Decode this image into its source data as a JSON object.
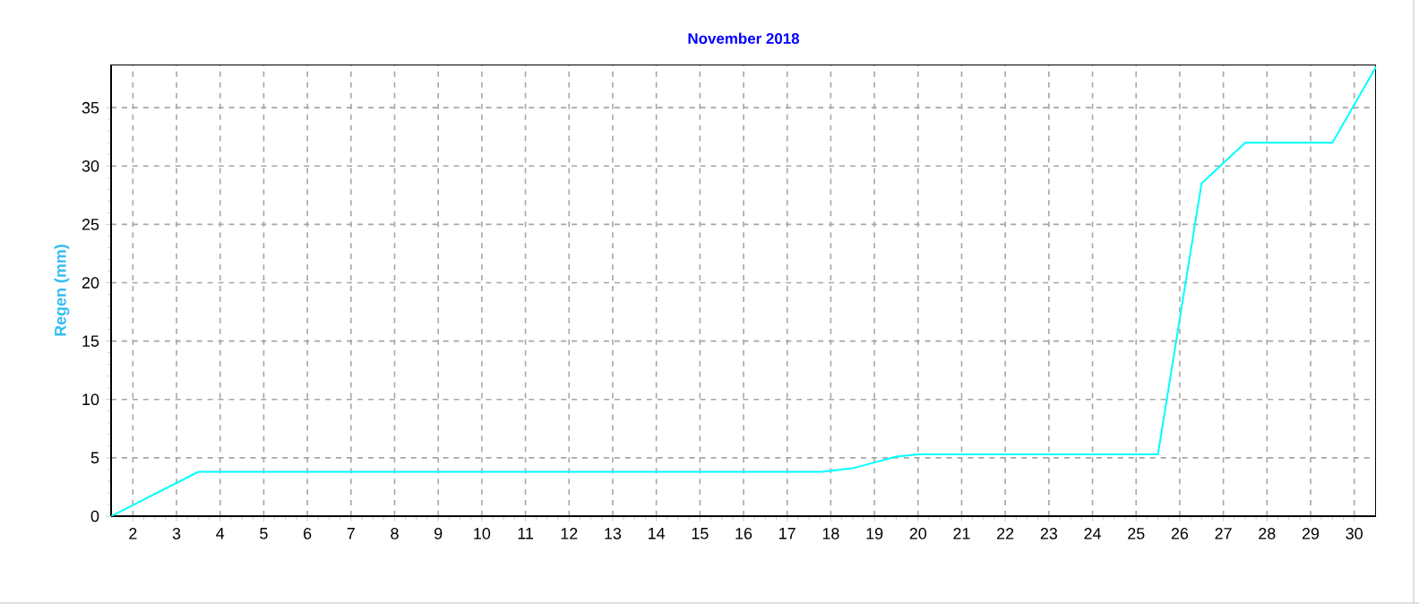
{
  "chart_data": {
    "type": "line",
    "title": "November 2018",
    "ylabel": "Regen  (mm)",
    "color": "#00ffff",
    "x": [
      1.5,
      3.5,
      17.8,
      18.5,
      19.5,
      20,
      25.5,
      26.5,
      27.5,
      29.5,
      30.5
    ],
    "values": [
      0,
      3.8,
      3.8,
      4.1,
      5.1,
      5.3,
      5.3,
      28.5,
      32,
      32,
      38.5
    ],
    "xlim": [
      1.5,
      30.5
    ],
    "xticks": [
      2,
      3,
      4,
      5,
      6,
      7,
      8,
      9,
      10,
      11,
      12,
      13,
      14,
      15,
      16,
      17,
      18,
      19,
      20,
      21,
      22,
      23,
      24,
      25,
      26,
      27,
      28,
      29,
      30
    ],
    "ylim": [
      0,
      38.7
    ],
    "yticks": [
      0,
      5,
      10,
      15,
      20,
      25,
      30,
      35
    ],
    "grid": true,
    "marker": "none",
    "line_style": "solid"
  }
}
